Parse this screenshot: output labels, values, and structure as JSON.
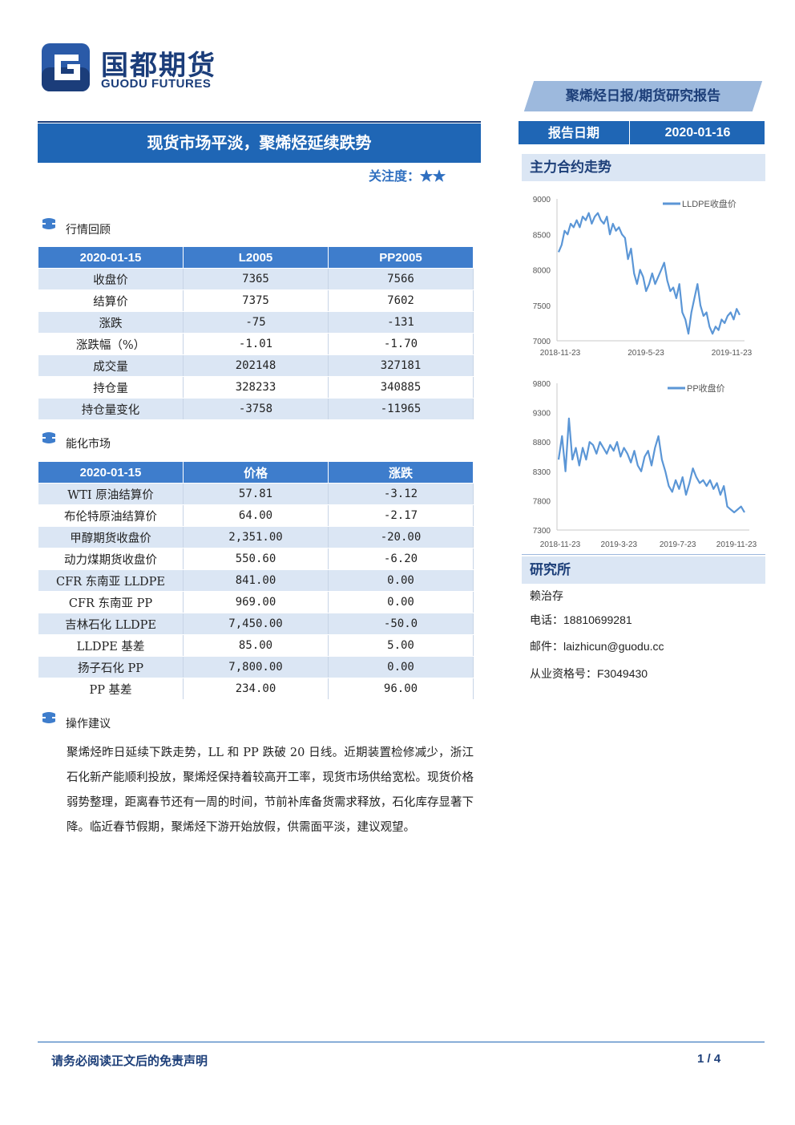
{
  "logo": {
    "cn": "国都期货",
    "en": "GUODU FUTURES"
  },
  "header": {
    "report_type": "聚烯烃日报/期货研究报告",
    "date_label": "报告日期",
    "date_value": "2020-01-16",
    "title": "现货市场平淡，聚烯烃延续跌势",
    "attention_label": "关注度：",
    "attention_stars": "★★"
  },
  "market_review": {
    "section_title": "行情回顾",
    "headers": [
      "2020-01-15",
      "L2005",
      "PP2005"
    ],
    "rows": [
      {
        "label": "收盘价",
        "l": "7365",
        "pp": "7566"
      },
      {
        "label": "结算价",
        "l": "7375",
        "pp": "7602"
      },
      {
        "label": "涨跌",
        "l": "-75",
        "pp": "-131"
      },
      {
        "label": "涨跌幅（%）",
        "l": "-1.01",
        "pp": "-1.70"
      },
      {
        "label": "成交量",
        "l": "202148",
        "pp": "327181"
      },
      {
        "label": "持仓量",
        "l": "328233",
        "pp": "340885"
      },
      {
        "label": "持仓量变化",
        "l": "-3758",
        "pp": "-11965"
      }
    ]
  },
  "energy_market": {
    "section_title": "能化市场",
    "headers": [
      "2020-01-15",
      "价格",
      "涨跌"
    ],
    "rows": [
      {
        "label": "WTI 原油结算价",
        "price": "57.81",
        "change": "-3.12"
      },
      {
        "label": "布伦特原油结算价",
        "price": "64.00",
        "change": "-2.17"
      },
      {
        "label": "甲醇期货收盘价",
        "price": "2,351.00",
        "change": "-20.00"
      },
      {
        "label": "动力煤期货收盘价",
        "price": "550.60",
        "change": "-6.20"
      },
      {
        "label": "CFR 东南亚 LLDPE",
        "price": "841.00",
        "change": "0.00"
      },
      {
        "label": "CFR 东南亚 PP",
        "price": "969.00",
        "change": "0.00"
      },
      {
        "label": "吉林石化 LLDPE",
        "price": "7,450.00",
        "change": "-50.0"
      },
      {
        "label": "LLDPE 基差",
        "price": "85.00",
        "change": "5.00"
      },
      {
        "label": "扬子石化 PP",
        "price": "7,800.00",
        "change": "0.00"
      },
      {
        "label": "PP 基差",
        "price": "234.00",
        "change": "96.00"
      }
    ]
  },
  "advice": {
    "section_title": "操作建议",
    "body": "聚烯烃昨日延续下跌走势，LL 和 PP 跌破 20 日线。近期装置检修减少，浙江石化新产能顺利投放，聚烯烃保持着较高开工率，现货市场供给宽松。现货价格弱势整理，距离春节还有一周的时间，节前补库备货需求释放，石化库存显著下降。临近春节假期，聚烯烃下游开始放假，供需面平淡，建议观望。"
  },
  "sidebar": {
    "chart_section_title": "主力合约走势",
    "research_title": "研究所",
    "analyst": "赖治存",
    "phone_label": "电话：",
    "phone": "18810699281",
    "email_label": "邮件：",
    "email": "laizhicun@guodu.cc",
    "license_label": "从业资格号：",
    "license": "F3049430"
  },
  "chart_data": [
    {
      "type": "line",
      "title": "",
      "series": [
        {
          "name": "LLDPE收盘价",
          "values": [
            8250,
            8350,
            8550,
            8500,
            8650,
            8600,
            8700,
            8600,
            8750,
            8700,
            8800,
            8650,
            8750,
            8800,
            8700,
            8650,
            8750,
            8500,
            8650,
            8550,
            8600,
            8500,
            8450,
            8150,
            8300,
            7950,
            7800,
            8000,
            7900,
            7700,
            7800,
            7950,
            7800,
            7900,
            8000,
            8100,
            7850,
            7700,
            7750,
            7600,
            7800,
            7400,
            7300,
            7100,
            7400,
            7600,
            7800,
            7500,
            7350,
            7400,
            7200,
            7100,
            7200,
            7150,
            7300,
            7250,
            7350,
            7400,
            7300,
            7450,
            7365
          ]
        }
      ],
      "x_ticks": [
        "2018-11-23",
        "2019-5-23",
        "2019-11-23"
      ],
      "y_ticks": [
        7000,
        7500,
        8000,
        8500,
        9000
      ],
      "ylim": [
        7000,
        9000
      ],
      "legend": "top-right",
      "color": "#5b96d6"
    },
    {
      "type": "line",
      "title": "",
      "series": [
        {
          "name": "PP收盘价",
          "values": [
            8500,
            8900,
            8300,
            9200,
            8500,
            8700,
            8400,
            8700,
            8500,
            8800,
            8750,
            8600,
            8800,
            8700,
            8600,
            8750,
            8650,
            8800,
            8550,
            8700,
            8600,
            8450,
            8650,
            8400,
            8300,
            8550,
            8650,
            8400,
            8700,
            8900,
            8500,
            8300,
            8050,
            7950,
            8150,
            8000,
            8200,
            7900,
            8100,
            8350,
            8200,
            8100,
            8150,
            8050,
            8150,
            8000,
            8100,
            7900,
            8050,
            7700,
            7650,
            7600,
            7650,
            7700,
            7600
          ]
        }
      ],
      "x_ticks": [
        "2018-11-23",
        "2019-3-23",
        "2019-7-23",
        "2019-11-23"
      ],
      "y_ticks": [
        7300,
        7800,
        8300,
        8800,
        9300,
        9800
      ],
      "ylim": [
        7300,
        9800
      ],
      "legend": "top-right",
      "color": "#5b96d6"
    }
  ],
  "footer": {
    "note": "请务必阅读正文后的免责声明",
    "page": "1 / 4"
  }
}
